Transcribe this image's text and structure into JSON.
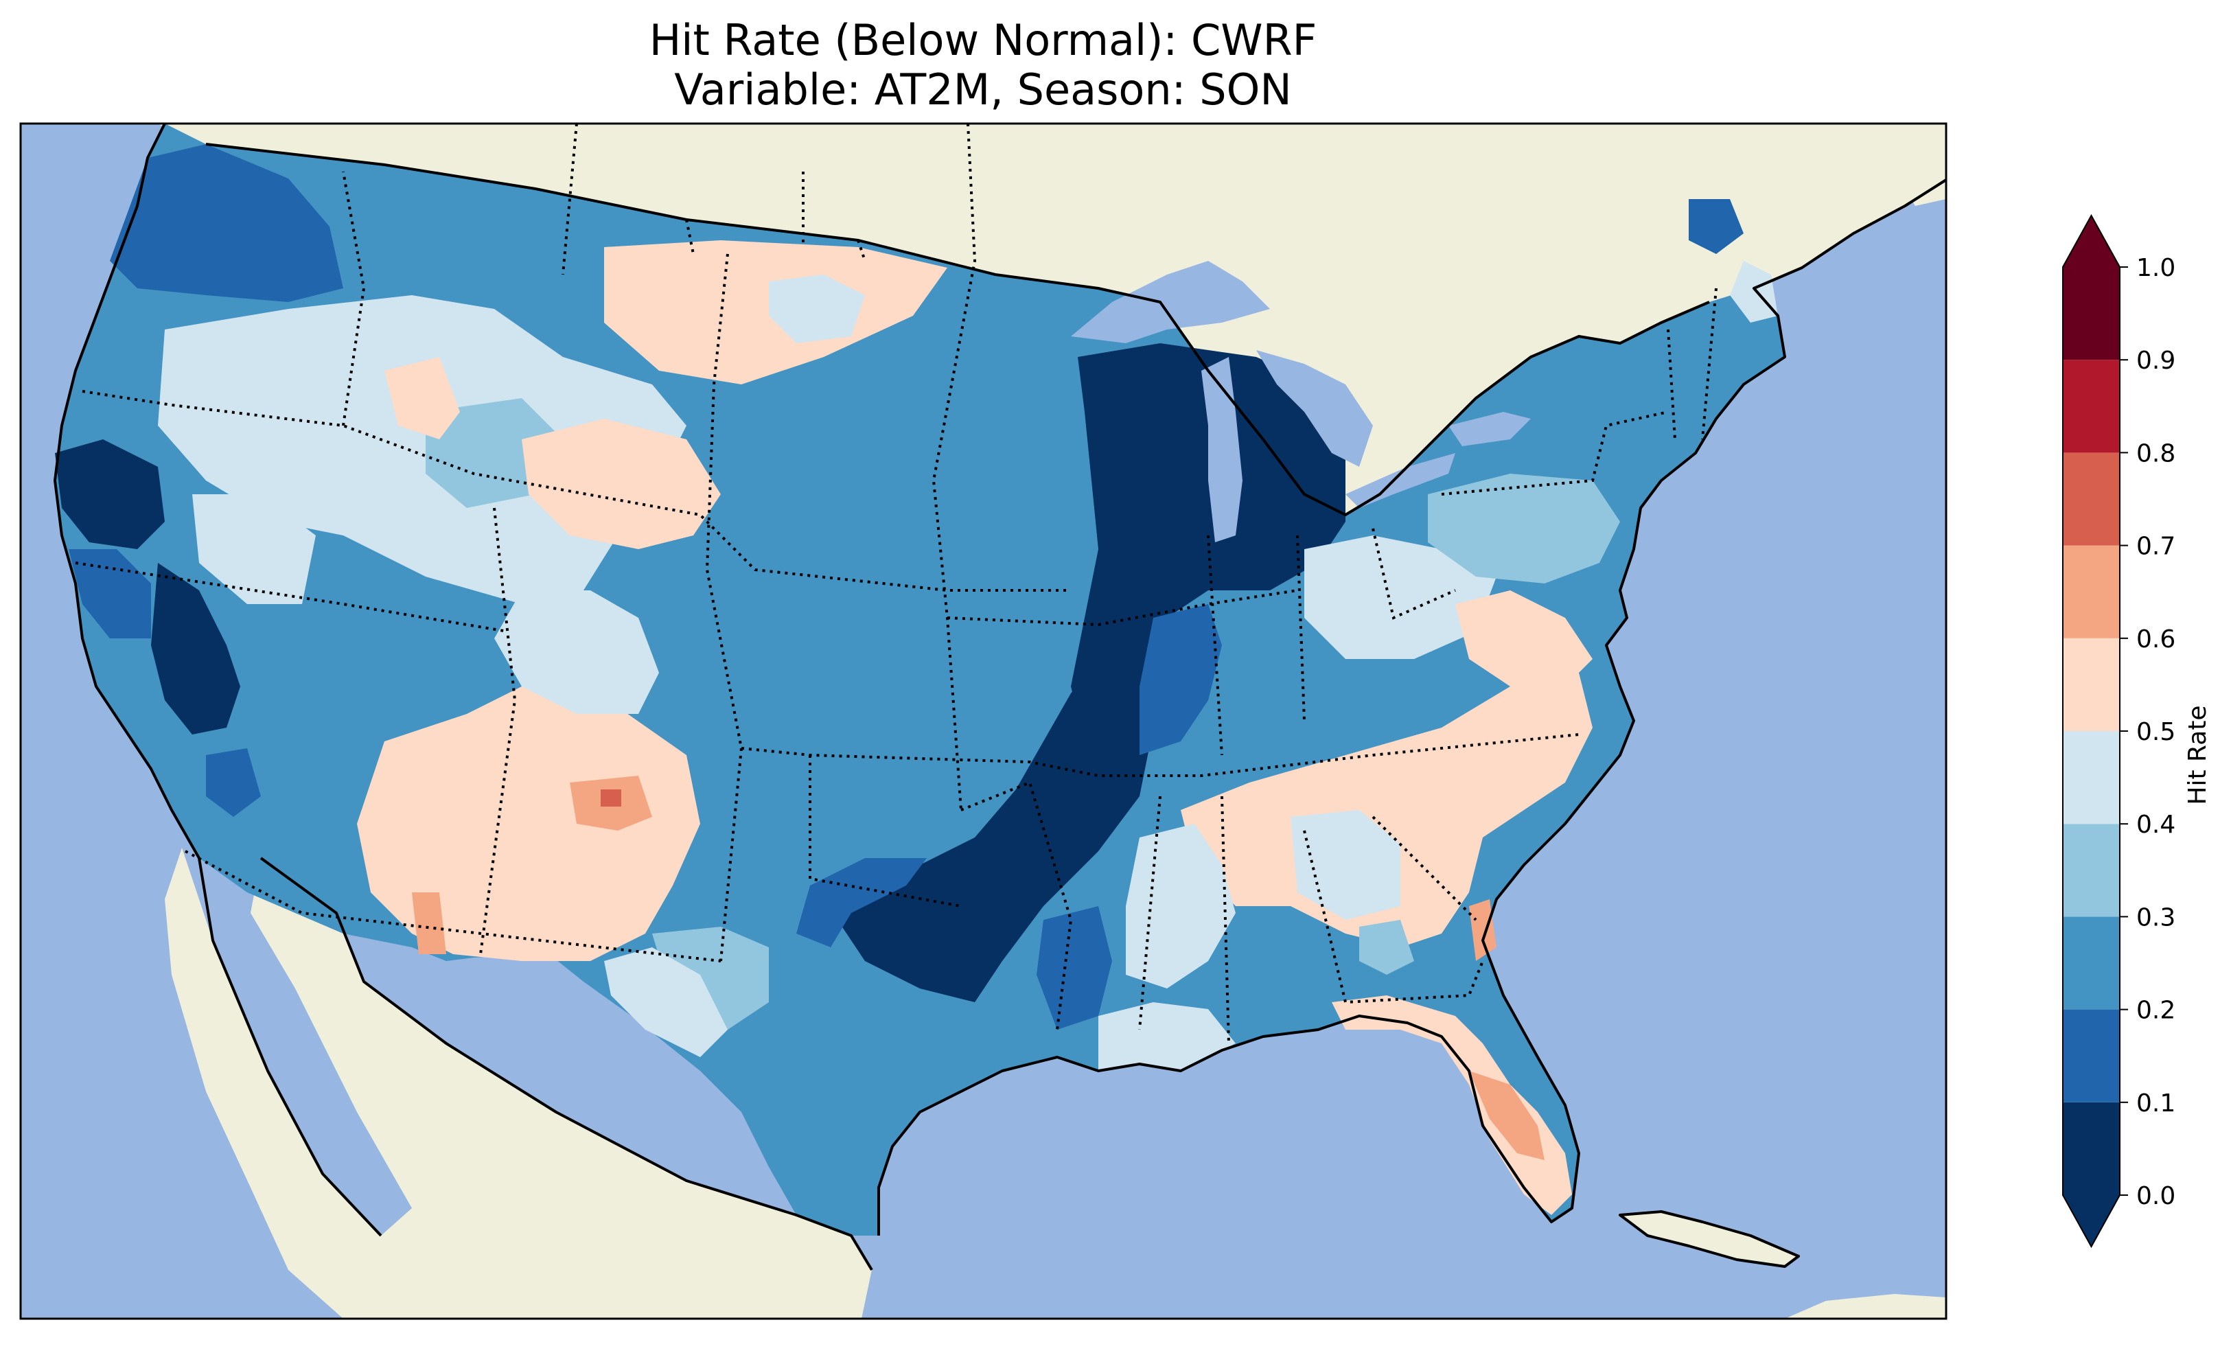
{
  "title": {
    "line1": "Hit Rate (Below Normal): CWRF",
    "line2": "Variable: AT2M, Season: SON"
  },
  "map": {
    "region": "Contiguous United States",
    "colors": {
      "ocean": "#97b6e1",
      "land": "#efefdb",
      "coastline": "#000000",
      "state_borders": "#000000"
    }
  },
  "colorbar": {
    "label": "Hit Rate",
    "ticks": [
      "0.0",
      "0.1",
      "0.2",
      "0.3",
      "0.4",
      "0.5",
      "0.6",
      "0.7",
      "0.8",
      "0.9",
      "1.0"
    ],
    "bins": [
      {
        "range": [
          0.0,
          0.1
        ],
        "color": "#053061"
      },
      {
        "range": [
          0.1,
          0.2
        ],
        "color": "#2166ac"
      },
      {
        "range": [
          0.2,
          0.3
        ],
        "color": "#4393c3"
      },
      {
        "range": [
          0.3,
          0.4
        ],
        "color": "#92c5de"
      },
      {
        "range": [
          0.4,
          0.5
        ],
        "color": "#d1e5f0"
      },
      {
        "range": [
          0.5,
          0.6
        ],
        "color": "#fddbc7"
      },
      {
        "range": [
          0.6,
          0.7
        ],
        "color": "#f4a582"
      },
      {
        "range": [
          0.7,
          0.8
        ],
        "color": "#d6604d"
      },
      {
        "range": [
          0.8,
          0.9
        ],
        "color": "#b2182b"
      },
      {
        "range": [
          0.9,
          1.0
        ],
        "color": "#67001f"
      }
    ],
    "extend": "both"
  }
}
